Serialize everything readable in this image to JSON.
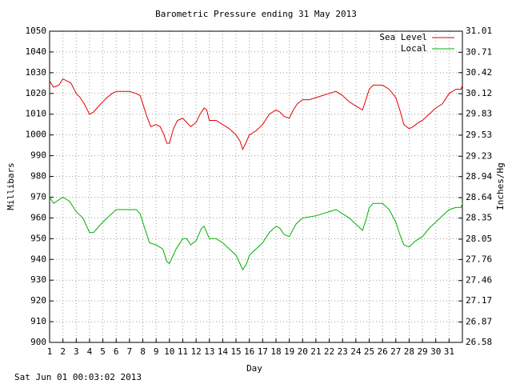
{
  "chart_data": {
    "type": "line",
    "title": "Barometric Pressure ending 31 May 2013",
    "xlabel": "Day",
    "ylabel": "Millibars",
    "y2label": "Inches/Hg",
    "timestamp": "Sat Jun 01 00:03:02 2013",
    "xlim": [
      1,
      32
    ],
    "xticks": [
      1,
      2,
      3,
      4,
      5,
      6,
      7,
      8,
      9,
      10,
      11,
      12,
      13,
      14,
      15,
      16,
      17,
      18,
      19,
      20,
      21,
      22,
      23,
      24,
      25,
      26,
      27,
      28,
      29,
      30,
      31
    ],
    "ylim": [
      900,
      1050
    ],
    "yticks": [
      900,
      910,
      920,
      930,
      940,
      950,
      960,
      970,
      980,
      990,
      1000,
      1010,
      1020,
      1030,
      1040,
      1050
    ],
    "y2lim": [
      26.58,
      31.01
    ],
    "y2ticks": [
      26.58,
      26.87,
      27.17,
      27.46,
      27.76,
      28.05,
      28.35,
      28.64,
      28.94,
      29.23,
      29.53,
      29.83,
      30.12,
      30.42,
      30.71,
      31.01
    ],
    "grid": true,
    "legend": "upper right",
    "series": [
      {
        "name": "Sea Level",
        "color": "#e00000",
        "x": [
          1,
          1.3,
          1.7,
          2,
          2.3,
          2.6,
          3,
          3.3,
          3.6,
          4,
          4.3,
          4.7,
          5,
          5.3,
          5.7,
          6,
          6.5,
          7,
          7.5,
          7.8,
          8,
          8.3,
          8.6,
          9,
          9.3,
          9.6,
          9.8,
          10,
          10.3,
          10.6,
          11,
          11.3,
          11.6,
          12,
          12.3,
          12.6,
          12.8,
          13,
          13.5,
          14,
          14.5,
          15,
          15.3,
          15.5,
          15.8,
          16,
          16.5,
          17,
          17.5,
          18,
          18.3,
          18.6,
          19,
          19.3,
          19.6,
          20,
          20.5,
          21,
          21.5,
          22,
          22.5,
          23,
          23.5,
          24,
          24.5,
          24.8,
          25,
          25.3,
          26,
          26.5,
          27,
          27.3,
          27.6,
          28,
          28.3,
          28.7,
          29,
          29.5,
          30,
          30.5,
          31,
          31.5,
          31.9,
          32
        ],
        "values": [
          1026,
          1023,
          1024,
          1027,
          1026,
          1025,
          1020,
          1018,
          1015,
          1010,
          1011,
          1014,
          1016,
          1018,
          1020,
          1021,
          1021,
          1021,
          1020,
          1019,
          1015,
          1009,
          1004,
          1005,
          1004,
          1000,
          996,
          996,
          1003,
          1007,
          1008,
          1006,
          1004,
          1006,
          1010,
          1013,
          1012,
          1007,
          1007,
          1005,
          1003,
          1000,
          997,
          993,
          997,
          1000,
          1002,
          1005,
          1010,
          1012,
          1011,
          1009,
          1008,
          1012,
          1015,
          1017,
          1017,
          1018,
          1019,
          1020,
          1021,
          1019,
          1016,
          1014,
          1012,
          1018,
          1022,
          1024,
          1024,
          1022,
          1018,
          1012,
          1005,
          1003,
          1004,
          1006,
          1007,
          1010,
          1013,
          1015,
          1020,
          1022,
          1022,
          1024
        ]
      },
      {
        "name": "Local",
        "color": "#00b000",
        "x": [
          1,
          1.3,
          2,
          2.5,
          3,
          3.5,
          4,
          4.3,
          5,
          5.5,
          6,
          7,
          7.5,
          7.8,
          8,
          8.5,
          9,
          9.5,
          9.8,
          10,
          10.5,
          11,
          11.3,
          11.6,
          12,
          12.4,
          12.6,
          13,
          13.5,
          14,
          14.5,
          15,
          15.3,
          15.5,
          15.8,
          16,
          16.5,
          17,
          17.5,
          18,
          18.3,
          18.6,
          19,
          19.5,
          20,
          21,
          21.5,
          22,
          22.5,
          23,
          23.5,
          24,
          24.5,
          24.8,
          25,
          25.3,
          26,
          26.5,
          27,
          27.3,
          27.6,
          28,
          28.5,
          29,
          29.5,
          30,
          30.5,
          31,
          31.5,
          31.9,
          32
        ],
        "values": [
          970,
          967,
          970,
          968,
          963,
          960,
          953,
          953,
          958,
          961,
          964,
          964,
          964,
          962,
          958,
          948,
          947,
          945,
          939,
          938,
          945,
          950,
          950,
          947,
          949,
          955,
          956,
          950,
          950,
          948,
          945,
          942,
          938,
          935,
          938,
          942,
          945,
          948,
          953,
          956,
          955,
          952,
          951,
          957,
          960,
          961,
          962,
          963,
          964,
          962,
          960,
          957,
          954,
          960,
          965,
          967,
          967,
          964,
          958,
          952,
          947,
          946,
          949,
          951,
          955,
          958,
          961,
          964,
          965,
          965,
          967
        ]
      }
    ]
  }
}
